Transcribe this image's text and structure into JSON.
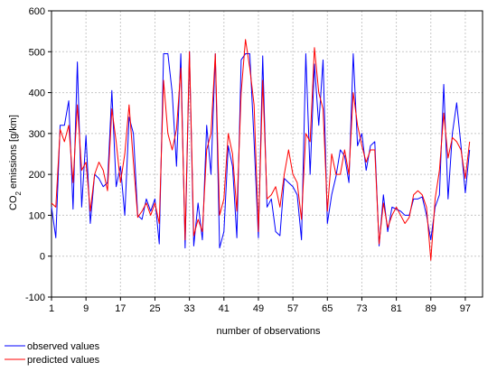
{
  "chart_data": {
    "type": "line",
    "xlabel": "number of observations",
    "ylabel_main": "CO",
    "ylabel_sub": "2",
    "ylabel_rest": " emissions [g/km]",
    "xlim": [
      1,
      101
    ],
    "ylim": [
      -100,
      600
    ],
    "xticks": [
      1,
      9,
      17,
      25,
      33,
      41,
      49,
      57,
      65,
      73,
      81,
      89,
      97
    ],
    "yticks": [
      -100,
      0,
      100,
      200,
      300,
      400,
      500,
      600
    ],
    "grid": true,
    "legend_position": "bottom-left",
    "series": [
      {
        "name": "observed values",
        "color": "#0000ff",
        "values": [
          120,
          45,
          320,
          320,
          380,
          115,
          475,
          120,
          295,
          80,
          200,
          190,
          170,
          180,
          405,
          170,
          220,
          100,
          340,
          300,
          100,
          90,
          140,
          110,
          140,
          30,
          495,
          495,
          400,
          220,
          495,
          20,
          500,
          25,
          130,
          40,
          320,
          200,
          495,
          20,
          60,
          270,
          220,
          45,
          480,
          495,
          495,
          280,
          45,
          490,
          120,
          140,
          60,
          50,
          190,
          180,
          170,
          150,
          40,
          495,
          200,
          470,
          320,
          480,
          80,
          150,
          195,
          260,
          245,
          180,
          495,
          270,
          300,
          210,
          270,
          280,
          25,
          150,
          60,
          120,
          115,
          110,
          100,
          100,
          140,
          140,
          145,
          100,
          40,
          120,
          150,
          420,
          140,
          300,
          375,
          270,
          155,
          260
        ]
      },
      {
        "name": "predicted values",
        "color": "#ff0000",
        "values": [
          130,
          120,
          310,
          280,
          320,
          180,
          370,
          210,
          230,
          110,
          200,
          230,
          210,
          160,
          360,
          280,
          180,
          250,
          370,
          230,
          95,
          110,
          130,
          100,
          130,
          80,
          430,
          300,
          260,
          310,
          460,
          40,
          500,
          50,
          90,
          60,
          260,
          300,
          495,
          100,
          140,
          300,
          250,
          110,
          400,
          530,
          460,
          370,
          60,
          430,
          140,
          150,
          170,
          120,
          200,
          260,
          200,
          180,
          90,
          300,
          280,
          510,
          400,
          360,
          110,
          250,
          200,
          200,
          260,
          200,
          400,
          320,
          270,
          230,
          260,
          260,
          30,
          130,
          70,
          100,
          120,
          100,
          80,
          95,
          150,
          160,
          150,
          120,
          -10,
          140,
          210,
          350,
          240,
          290,
          280,
          260,
          190,
          280
        ]
      }
    ]
  }
}
